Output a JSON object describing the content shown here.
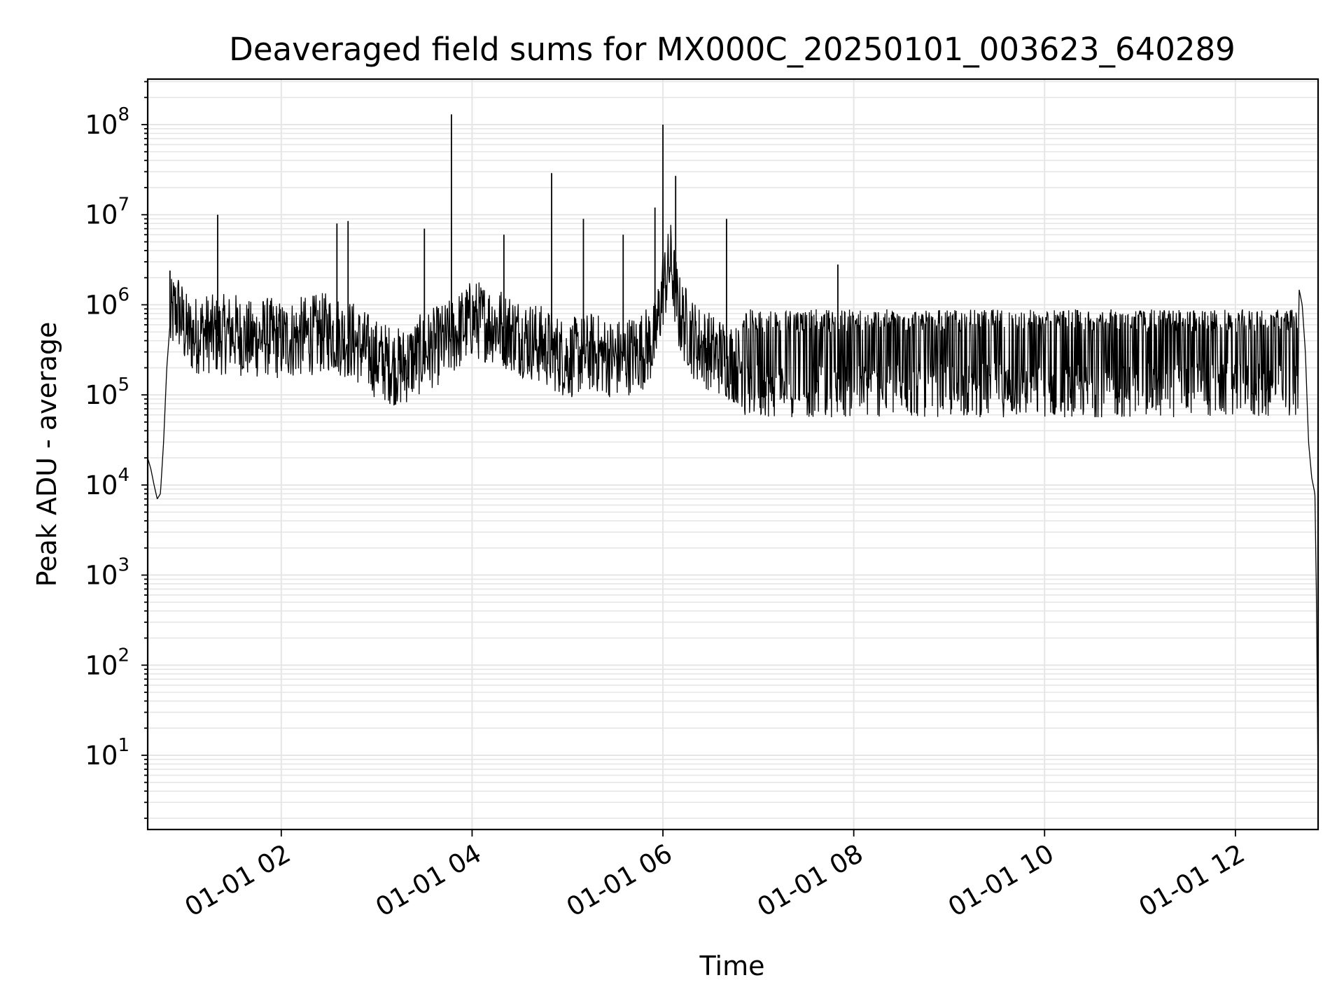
{
  "chart_data": {
    "type": "line",
    "title": "Deaveraged field sums for MX000C_20250101_003623_640289",
    "xlabel": "Time",
    "ylabel": "Peak ADU - average",
    "x_range": [
      "2025-01-01 00:36",
      "2025-01-01 12:52"
    ],
    "x_ticks": [
      {
        "value": "2025-01-01 02:00",
        "label": "01-01 02"
      },
      {
        "value": "2025-01-01 04:00",
        "label": "01-01 04"
      },
      {
        "value": "2025-01-01 06:00",
        "label": "01-01 06"
      },
      {
        "value": "2025-01-01 08:00",
        "label": "01-01 08"
      },
      {
        "value": "2025-01-01 10:00",
        "label": "01-01 10"
      },
      {
        "value": "2025-01-01 12:00",
        "label": "01-01 12"
      }
    ],
    "y_scale": "log",
    "ylim": [
      1.5,
      320000000
    ],
    "y_ticks": [
      {
        "value": 10,
        "base": "10",
        "exp": "1"
      },
      {
        "value": 100,
        "base": "10",
        "exp": "2"
      },
      {
        "value": 1000,
        "base": "10",
        "exp": "3"
      },
      {
        "value": 10000,
        "base": "10",
        "exp": "4"
      },
      {
        "value": 100000,
        "base": "10",
        "exp": "5"
      },
      {
        "value": 1000000,
        "base": "10",
        "exp": "6"
      },
      {
        "value": 10000000,
        "base": "10",
        "exp": "7"
      },
      {
        "value": 100000000,
        "base": "10",
        "exp": "8"
      }
    ],
    "grid": true,
    "line_color": "#000000",
    "grid_color": "#e6e6e6",
    "series": [
      {
        "x": [
          "2025-01-01 00:36",
          "2025-01-01 00:38",
          "2025-01-01 00:40",
          "2025-01-01 00:42",
          "2025-01-01 00:44",
          "2025-01-01 00:46",
          "2025-01-01 00:48",
          "2025-01-01 00:50",
          "2025-01-01 00:52",
          "2025-01-01 00:55",
          "2025-01-01 01:00",
          "2025-01-01 01:05",
          "2025-01-01 01:10",
          "2025-01-01 01:20",
          "2025-01-01 01:30",
          "2025-01-01 01:40",
          "2025-01-01 01:50",
          "2025-01-01 02:00",
          "2025-01-01 02:15",
          "2025-01-01 02:30",
          "2025-01-01 02:45",
          "2025-01-01 03:00",
          "2025-01-01 03:15",
          "2025-01-01 03:30",
          "2025-01-01 03:45",
          "2025-01-01 04:00",
          "2025-01-01 04:15",
          "2025-01-01 04:30",
          "2025-01-01 04:45",
          "2025-01-01 05:00",
          "2025-01-01 05:15",
          "2025-01-01 05:30",
          "2025-01-01 05:45",
          "2025-01-01 05:55",
          "2025-01-01 06:00",
          "2025-01-01 06:05",
          "2025-01-01 06:10",
          "2025-01-01 06:20",
          "2025-01-01 06:30",
          "2025-01-01 06:40",
          "2025-01-01 06:50",
          "2025-01-01 07:00",
          "2025-01-01 07:30",
          "2025-01-01 08:00",
          "2025-01-01 08:30",
          "2025-01-01 09:00",
          "2025-01-01 09:30",
          "2025-01-01 10:00",
          "2025-01-01 10:30",
          "2025-01-01 11:00",
          "2025-01-01 11:30",
          "2025-01-01 12:00",
          "2025-01-01 12:20",
          "2025-01-01 12:30",
          "2025-01-01 12:35",
          "2025-01-01 12:40",
          "2025-01-01 12:42",
          "2025-01-01 12:44",
          "2025-01-01 12:46",
          "2025-01-01 12:48",
          "2025-01-01 12:50",
          "2025-01-01 12:51",
          "2025-01-01 12:52"
        ],
        "y": [
          20000,
          15000,
          10000,
          7000,
          8000,
          30000,
          200000,
          600000,
          800000,
          900000,
          500000,
          450000,
          500000,
          450000,
          500000,
          400000,
          450000,
          400000,
          450000,
          500000,
          400000,
          250000,
          200000,
          300000,
          400000,
          700000,
          600000,
          450000,
          350000,
          250000,
          300000,
          250000,
          300000,
          400000,
          1500000,
          3000000,
          800000,
          400000,
          300000,
          250000,
          200000,
          150000,
          150000,
          150000,
          160000,
          200000,
          250000,
          300000,
          350000,
          350000,
          350000,
          400000,
          450000,
          500000,
          800000,
          1500000,
          1000000,
          300000,
          30000,
          12000,
          8000,
          500,
          4
        ]
      }
    ],
    "spikes": [
      {
        "x": "2025-01-01 00:50",
        "y": 2400000
      },
      {
        "x": "2025-01-01 01:20",
        "y": 10000000
      },
      {
        "x": "2025-01-01 02:35",
        "y": 8000000
      },
      {
        "x": "2025-01-01 02:42",
        "y": 8500000
      },
      {
        "x": "2025-01-01 03:30",
        "y": 7000000
      },
      {
        "x": "2025-01-01 03:47",
        "y": 130000000
      },
      {
        "x": "2025-01-01 04:20",
        "y": 6000000
      },
      {
        "x": "2025-01-01 04:50",
        "y": 29000000
      },
      {
        "x": "2025-01-01 05:10",
        "y": 9000000
      },
      {
        "x": "2025-01-01 05:35",
        "y": 6000000
      },
      {
        "x": "2025-01-01 05:55",
        "y": 12000000
      },
      {
        "x": "2025-01-01 06:00",
        "y": 100000000
      },
      {
        "x": "2025-01-01 06:08",
        "y": 27000000
      },
      {
        "x": "2025-01-01 06:40",
        "y": 9000000
      },
      {
        "x": "2025-01-01 07:50",
        "y": 2800000
      }
    ]
  }
}
